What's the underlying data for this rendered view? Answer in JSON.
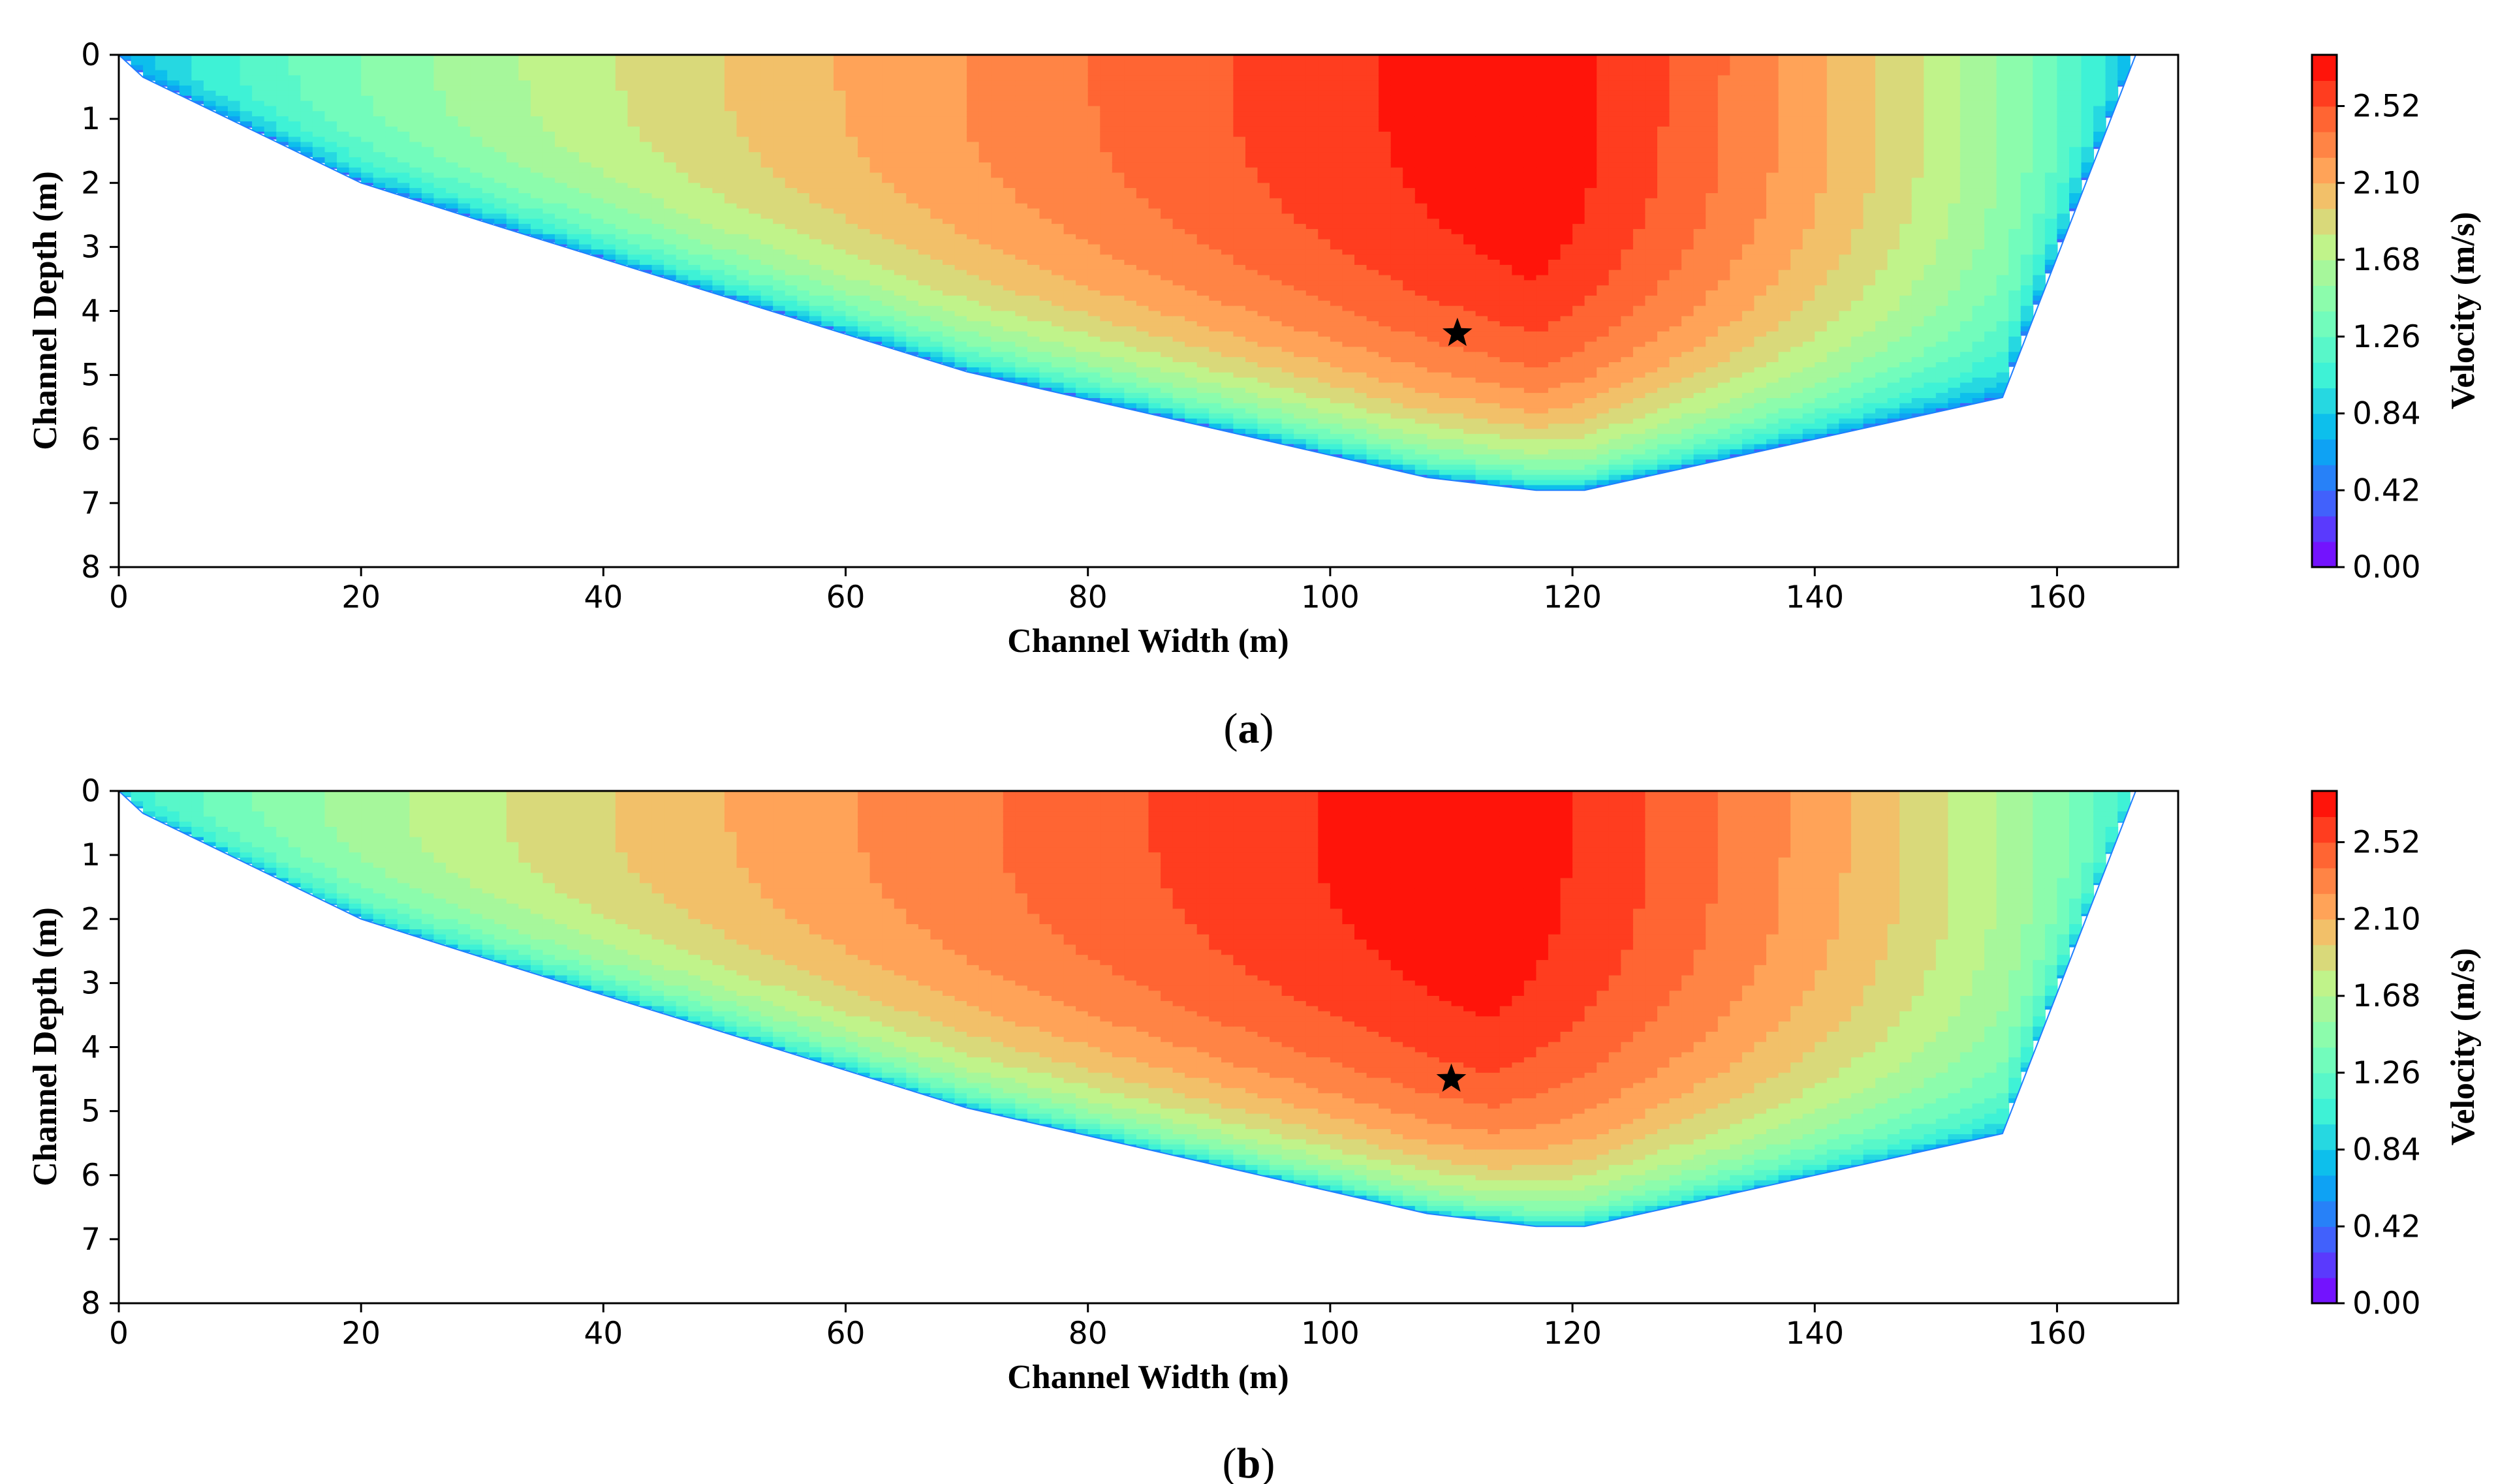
{
  "chart_data": [
    {
      "type": "heatmap",
      "panel": "a",
      "panel_label_open": "(",
      "panel_label_letter": "a",
      "panel_label_close": ")",
      "xlabel": "Channel Width (m)",
      "ylabel": "Channel Depth (m)",
      "xlim": [
        0,
        170
      ],
      "ylim": [
        8,
        0
      ],
      "xticks": [
        0,
        20,
        40,
        60,
        80,
        100,
        120,
        140,
        160
      ],
      "yticks": [
        0,
        1,
        2,
        3,
        4,
        5,
        6,
        7,
        8
      ],
      "colorbar": {
        "label": "Velocity (m/s)",
        "range": [
          0,
          2.8
        ],
        "ticks": [
          "0.00",
          "0.42",
          "0.84",
          "1.26",
          "1.68",
          "2.10",
          "2.52"
        ],
        "tick_values": [
          0,
          0.42,
          0.84,
          1.26,
          1.68,
          2.1,
          2.52
        ]
      },
      "bed_profile": [
        [
          0,
          0
        ],
        [
          2,
          0.35
        ],
        [
          20,
          2.0
        ],
        [
          30,
          2.6
        ],
        [
          70,
          4.95
        ],
        [
          108,
          6.6
        ],
        [
          117,
          6.8
        ],
        [
          121,
          6.8
        ],
        [
          155.5,
          5.35
        ],
        [
          166.5,
          0
        ]
      ],
      "max_velocity_marker": {
        "x": 110.5,
        "y": 4.35,
        "symbol": "star"
      },
      "velocity_core": {
        "x": 117,
        "y": 0.8,
        "max_velocity": 2.8
      },
      "boundary_velocity": 0.55
    },
    {
      "type": "heatmap",
      "panel": "b",
      "panel_label_open": "(",
      "panel_label_letter": "b",
      "panel_label_close": ")",
      "xlabel": "Channel Width (m)",
      "ylabel": "Channel Depth (m)",
      "xlim": [
        0,
        170
      ],
      "ylim": [
        8,
        0
      ],
      "xticks": [
        0,
        20,
        40,
        60,
        80,
        100,
        120,
        140,
        160
      ],
      "yticks": [
        0,
        1,
        2,
        3,
        4,
        5,
        6,
        7,
        8
      ],
      "colorbar": {
        "label": "Velocity (m/s)",
        "range": [
          0,
          2.8
        ],
        "ticks": [
          "0.00",
          "0.42",
          "0.84",
          "1.26",
          "1.68",
          "2.10",
          "2.52"
        ],
        "tick_values": [
          0,
          0.42,
          0.84,
          1.26,
          1.68,
          2.1,
          2.52
        ]
      },
      "bed_profile": [
        [
          0,
          0
        ],
        [
          2,
          0.35
        ],
        [
          20,
          2.0
        ],
        [
          30,
          2.6
        ],
        [
          70,
          4.95
        ],
        [
          108,
          6.6
        ],
        [
          117,
          6.8
        ],
        [
          121,
          6.8
        ],
        [
          155.5,
          5.35
        ],
        [
          166.5,
          0
        ]
      ],
      "max_velocity_marker": {
        "x": 110,
        "y": 4.5,
        "symbol": "star"
      },
      "velocity_core": {
        "x": 113,
        "y": 0.8,
        "max_velocity": 2.8
      },
      "boundary_velocity": 0.85
    }
  ],
  "colormap": {
    "name": "rainbow",
    "levels": 20,
    "stops": [
      "#7f00ff",
      "#4161fc",
      "#01b2f2",
      "#3ef2d6",
      "#7ffeb5",
      "#c0f38a",
      "#ffb361",
      "#ff6533",
      "#ff0000"
    ]
  }
}
